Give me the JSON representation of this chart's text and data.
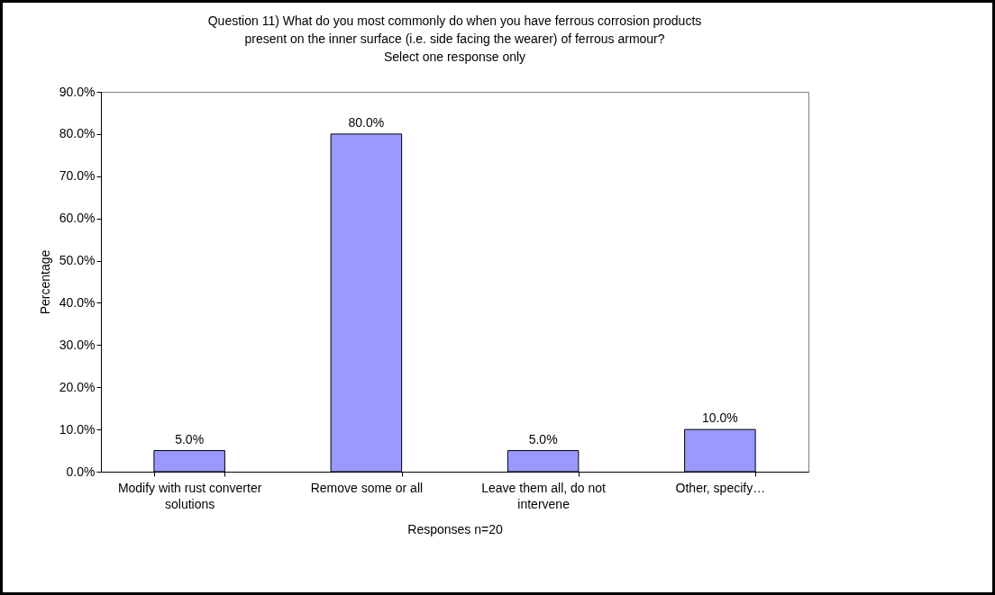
{
  "chart_data": {
    "type": "bar",
    "title": "Question 11)  What do you most commonly do when you have ferrous corrosion products\npresent on the inner surface (i.e. side facing the wearer) of ferrous armour?\nSelect one response only",
    "xlabel": "Responses n=20",
    "ylabel": "Percentage",
    "categories": [
      "Modify with rust converter solutions",
      "Remove some or all",
      "Leave them all, do not intervene",
      "Other, specify…"
    ],
    "values": [
      5,
      80,
      5,
      10
    ],
    "value_labels": [
      "5.0%",
      "80.0%",
      "5.0%",
      "10.0%"
    ],
    "color": "#9999ff",
    "ylim": [
      0,
      90
    ],
    "yticks": [
      {
        "value": 0,
        "label": "0.0%"
      },
      {
        "value": 10,
        "label": "10.0%"
      },
      {
        "value": 20,
        "label": "20.0%"
      },
      {
        "value": 30,
        "label": "30.0%"
      },
      {
        "value": 40,
        "label": "40.0%"
      },
      {
        "value": 50,
        "label": "50.0%"
      },
      {
        "value": 60,
        "label": "60.0%"
      },
      {
        "value": 70,
        "label": "70.0%"
      },
      {
        "value": 80,
        "label": "80.0%"
      },
      {
        "value": 90,
        "label": "90.0%"
      }
    ]
  }
}
